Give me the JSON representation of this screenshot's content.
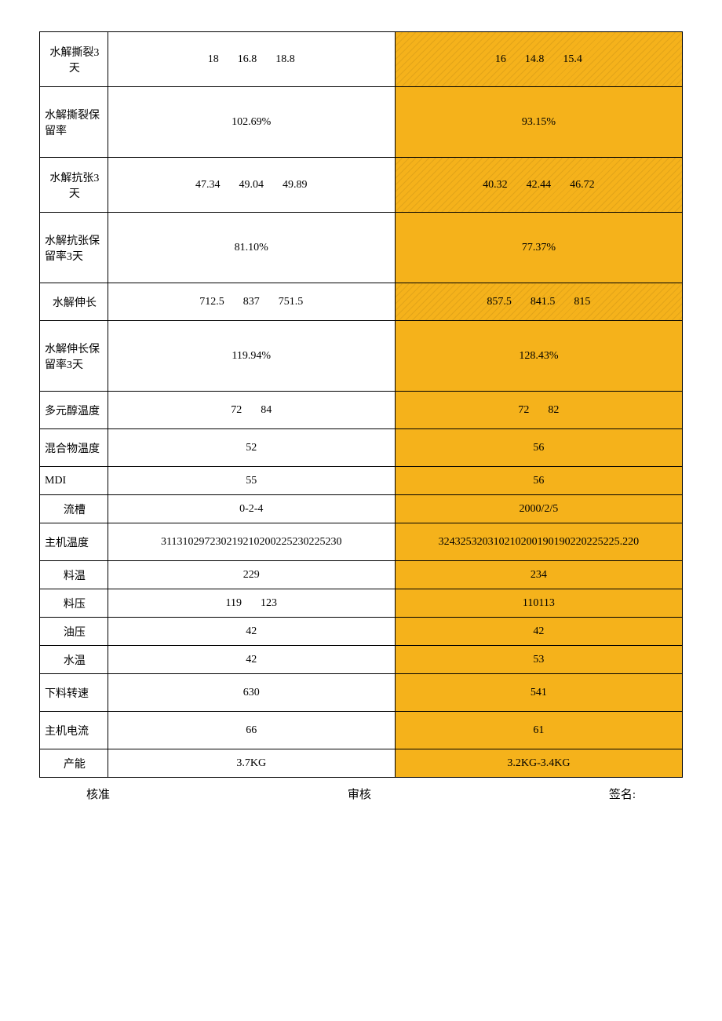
{
  "colors": {
    "highlight": "#f5b21b",
    "border": "#000000",
    "text": "#000000"
  },
  "rows": [
    {
      "label": "水解撕裂3天",
      "a1": "18",
      "a2": "16.8",
      "a3": "18.8",
      "b1": "16",
      "b2": "14.8",
      "b3": "15.4",
      "h": "tall",
      "labelCenter": true,
      "triple": true
    },
    {
      "label": "水解撕裂保留率",
      "a": "102.69%",
      "b": "93.15%",
      "h": "taller",
      "topBorderDashed": true
    },
    {
      "label": "水解抗张3天",
      "a1": "47.34",
      "a2": "49.04",
      "a3": "49.89",
      "b1": "40.32",
      "b2": "42.44",
      "b3": "46.72",
      "h": "tall",
      "labelCenter": true,
      "triple": true
    },
    {
      "label": "水解抗张保留率3天",
      "a": "81.10%",
      "b": "77.37%",
      "h": "taller"
    },
    {
      "label": "水解伸长",
      "a1": "712.5",
      "a2": "837",
      "a3": "751.5",
      "b1": "857.5",
      "b2": "841.5",
      "b3": "815",
      "h": "med",
      "labelCenter": true,
      "triple": true
    },
    {
      "label": "水解伸长保留率3天",
      "a": "119.94%",
      "b": "128.43%",
      "h": "taller"
    },
    {
      "label": "多元醇温度",
      "a1": "72",
      "a2": "84",
      "b1": "72",
      "b2": "82",
      "h": "med",
      "double": true
    },
    {
      "label": "混合物温度",
      "a": "52",
      "b": "56",
      "h": "med"
    },
    {
      "label": "MDI",
      "a": "55",
      "b": "56",
      "h": "short"
    },
    {
      "label": "流槽",
      "a": "0-2-4",
      "b": "2000/2/5",
      "h": "short",
      "labelCenter": true
    },
    {
      "label": "主机温度",
      "a": "311310297230219210200225230225230",
      "b": "324325320310210200190190220225225.220",
      "h": "med"
    },
    {
      "label": "料温",
      "a": "229",
      "b": "234",
      "h": "short",
      "labelCenter": true
    },
    {
      "label": "料压",
      "a1": "119",
      "a2": "123",
      "b": "110113",
      "h": "short",
      "labelCenter": true,
      "doubleA": true
    },
    {
      "label": "油压",
      "a": "42",
      "b": "42",
      "h": "short",
      "labelCenter": true
    },
    {
      "label": "水温",
      "a": "42",
      "b": "53",
      "h": "short",
      "labelCenter": true
    },
    {
      "label": "下料转速",
      "a": "630",
      "b": "541",
      "h": "med"
    },
    {
      "label": "主机电流",
      "a": "66",
      "b": "61",
      "h": "med"
    },
    {
      "label": "产能",
      "a": "3.7KG",
      "b": "3.2KG-3.4KG",
      "h": "short",
      "labelCenter": true
    }
  ],
  "footer": {
    "left": "核准",
    "mid": "审核",
    "right": "签名:"
  }
}
